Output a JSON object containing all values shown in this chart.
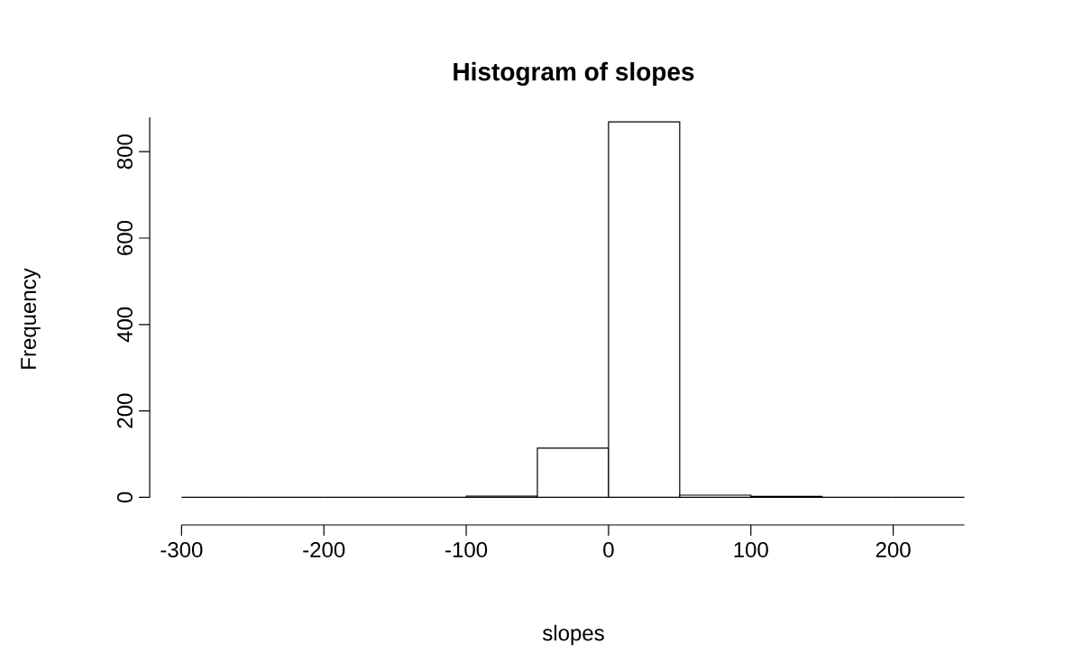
{
  "chart_data": {
    "type": "histogram",
    "title": "Histogram of slopes",
    "xlabel": "slopes",
    "ylabel": "Frequency",
    "bins": [
      -300,
      -250,
      -200,
      -150,
      -100,
      -50,
      0,
      50,
      100,
      150,
      200,
      250
    ],
    "values": [
      0,
      0,
      0,
      0,
      3,
      114,
      869,
      5,
      2,
      0,
      0
    ],
    "xlim": [
      -300,
      250
    ],
    "ylim": [
      0,
      880
    ],
    "xticks": [
      -300,
      -200,
      -100,
      0,
      100,
      200
    ],
    "yticks": [
      0,
      200,
      400,
      600,
      800
    ]
  }
}
